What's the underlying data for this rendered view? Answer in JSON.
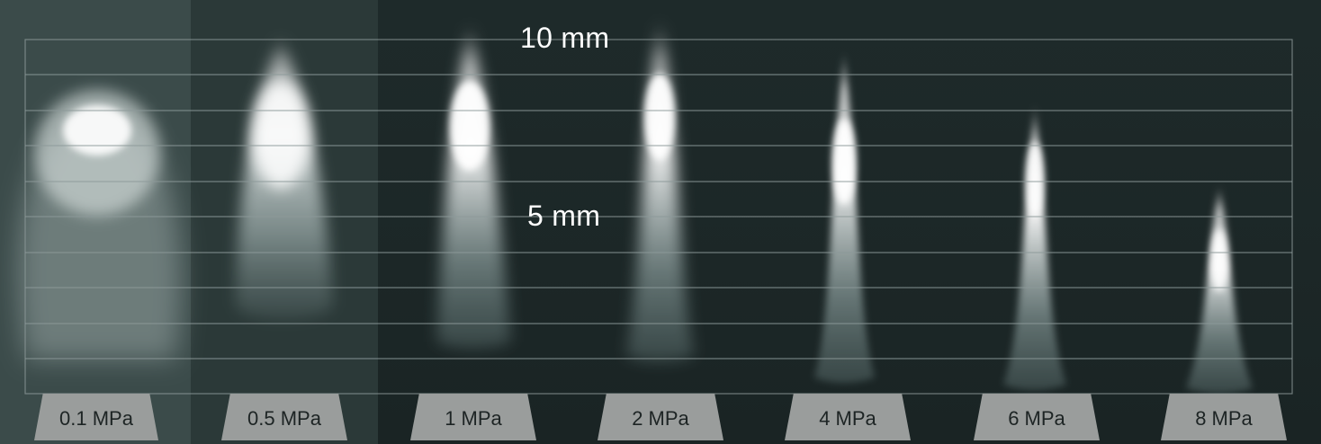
{
  "scale": {
    "top_label": "10 mm",
    "mid_label": "5 mm"
  },
  "sprays": [
    {
      "label": "0.1 MPa",
      "pressure_mpa": 0.1
    },
    {
      "label": "0.5 MPa",
      "pressure_mpa": 0.5
    },
    {
      "label": "1 MPa",
      "pressure_mpa": 1
    },
    {
      "label": "2 MPa",
      "pressure_mpa": 2
    },
    {
      "label": "4 MPa",
      "pressure_mpa": 4
    },
    {
      "label": "6 MPa",
      "pressure_mpa": 6
    },
    {
      "label": "8 MPa",
      "pressure_mpa": 8
    }
  ],
  "colors": {
    "background": "#1b2626",
    "grid": "#8e9a99",
    "label_box": "#9a9d9c",
    "label_text": "#1d2424",
    "spray": "#ffffff"
  }
}
